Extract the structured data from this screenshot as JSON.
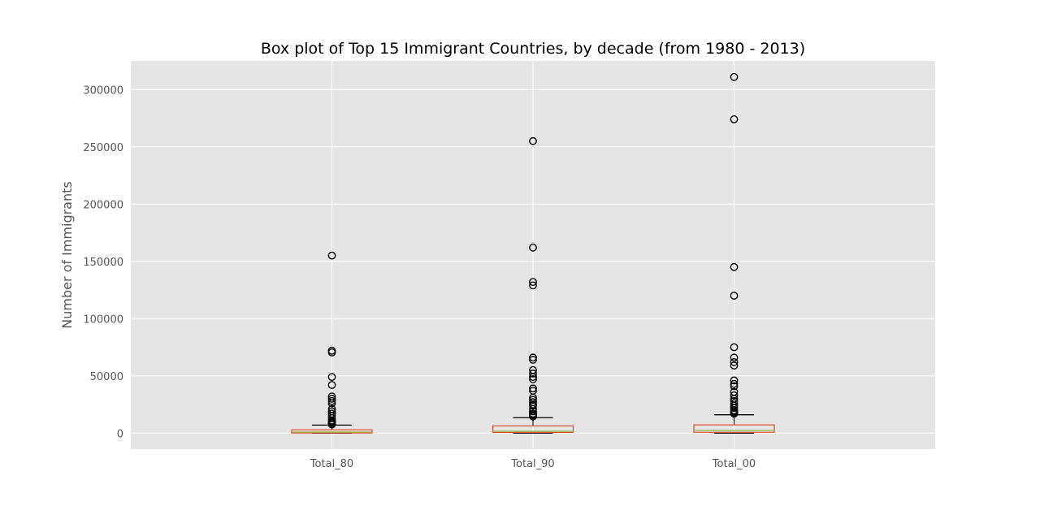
{
  "chart_data": {
    "type": "box",
    "title": "Box plot of Top 15 Immigrant Countries, by decade (from 1980 - 2013)",
    "xlabel": "",
    "ylabel": "Number of Immigrants",
    "ylim": [
      -14000,
      325000
    ],
    "yticks": [
      0,
      50000,
      100000,
      150000,
      200000,
      250000,
      300000
    ],
    "ytick_labels": [
      "0",
      "50000",
      "100000",
      "150000",
      "200000",
      "250000",
      "300000"
    ],
    "categories": [
      "Total_80",
      "Total_90",
      "Total_00"
    ],
    "grid": true,
    "boxes": [
      {
        "name": "Total_80",
        "whisker_low": 0,
        "q1": 100,
        "median": 900,
        "q3": 2900,
        "whisker_high": 7000,
        "outliers": [
          155000,
          72000,
          70500,
          49000,
          42000,
          32000,
          30000,
          28000,
          26000,
          21000,
          19000,
          17000,
          15000,
          13000,
          11000,
          10000,
          9000,
          8000,
          7500
        ]
      },
      {
        "name": "Total_90",
        "whisker_low": 0,
        "q1": 600,
        "median": 1700,
        "q3": 6300,
        "whisker_high": 13500,
        "outliers": [
          255000,
          162000,
          132000,
          129000,
          66000,
          64000,
          55000,
          52000,
          49000,
          47000,
          39000,
          37000,
          31000,
          29000,
          27000,
          25000,
          24000,
          21000,
          19000,
          17000,
          16000,
          15000,
          14500
        ]
      },
      {
        "name": "Total_00",
        "whisker_low": 0,
        "q1": 700,
        "median": 2300,
        "q3": 7200,
        "whisker_high": 16000,
        "outliers": [
          311000,
          274000,
          145000,
          120000,
          75000,
          66000,
          62000,
          59000,
          46000,
          43000,
          41000,
          36000,
          33000,
          30000,
          28000,
          26000,
          24000,
          22000,
          20000,
          19000,
          18000,
          17000
        ]
      }
    ],
    "colors": {
      "plot_background": "#e5e5e5",
      "grid": "#ffffff",
      "box": "#e24a33",
      "median": "#8eba42",
      "whisker": "#000000",
      "outlier_edge": "#000000"
    }
  }
}
